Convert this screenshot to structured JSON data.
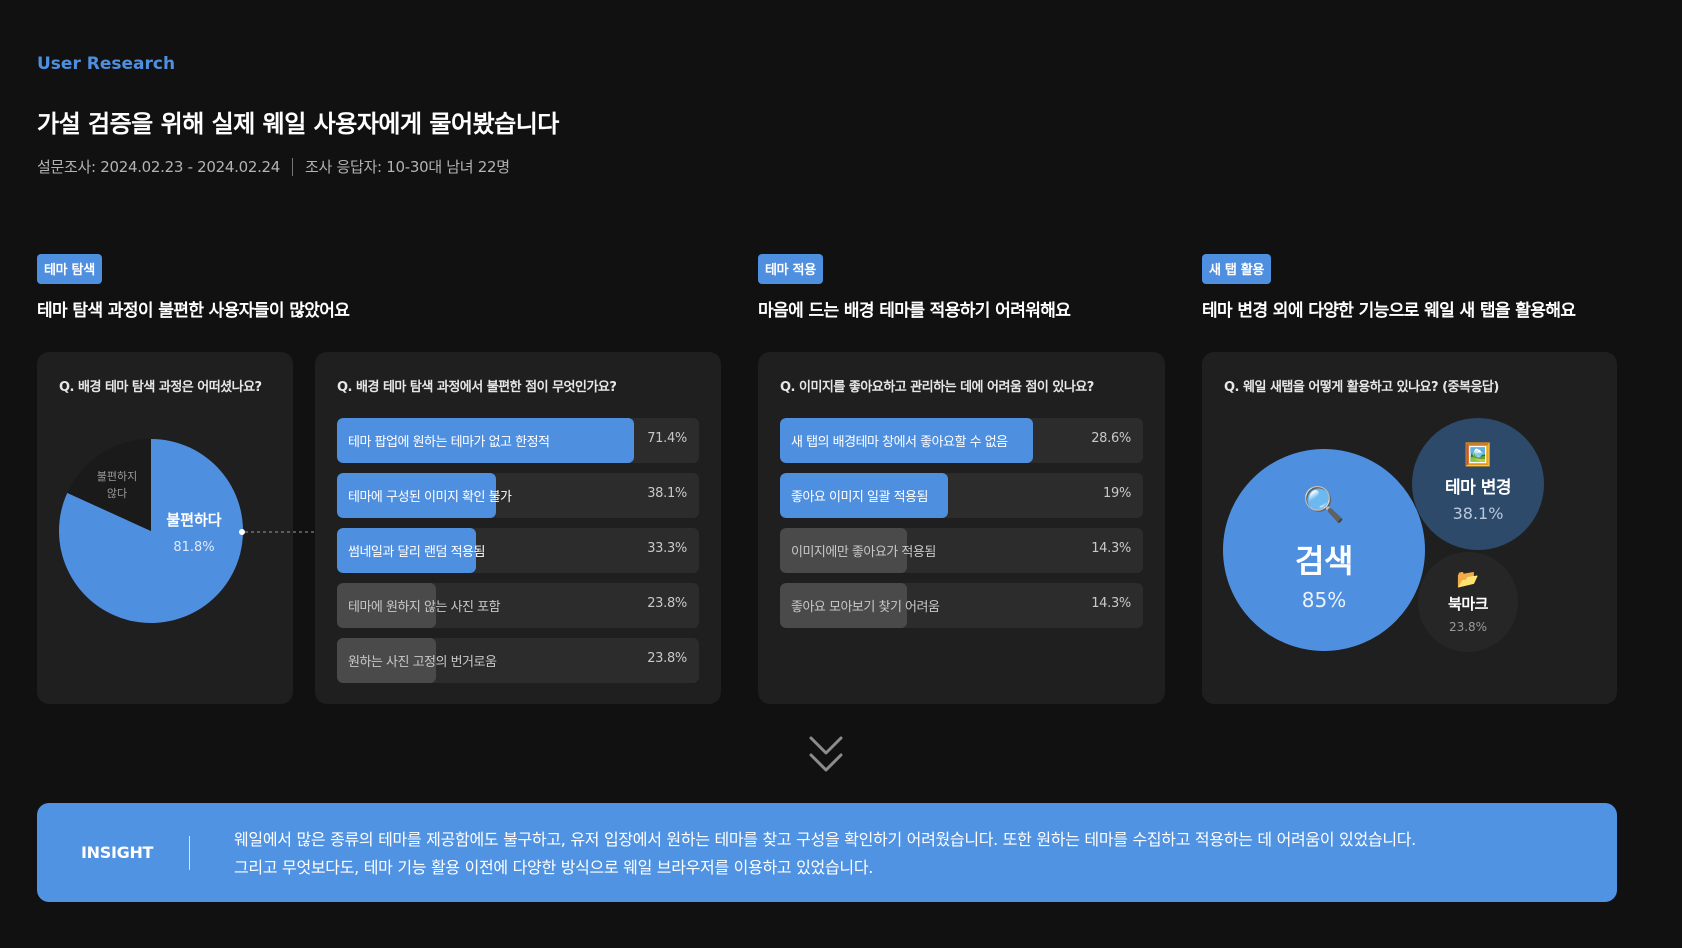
{
  "header": {
    "eyebrow": "User Research",
    "title": "가설 검증을 위해 실제 웨일 사용자에게 물어봤습니다",
    "survey_period": "설문조사: 2024.02.23 - 2024.02.24",
    "respondents": "조사 응답자: 10-30대 남녀 22명"
  },
  "sections": [
    {
      "tag": "테마 탐색",
      "title": "테마 탐색 과정이 불편한 사용자들이 많았어요"
    },
    {
      "tag": "테마 적용",
      "title": "마음에 드는 배경 테마를 적용하기 어려워해요"
    },
    {
      "tag": "새 탭 활용",
      "title": "테마 변경 외에 다양한 기능으로 웨일 새 탭을 활용해요"
    }
  ],
  "colors": {
    "accent": "#4f8fe0",
    "muted_bar": "#4a4a4a",
    "card": "#1f1f1f",
    "background": "#111111",
    "pie_secondary": "#1a1a1a",
    "bubble_theme": "#2d4a6b",
    "bubble_bookmark": "#262626"
  },
  "chart_data": [
    {
      "type": "pie",
      "question": "Q. 배경 테마 탐색 과정은 어떠셨나요?",
      "slices": [
        {
          "label": "불편하다",
          "value": 81.8,
          "display": "81.8%"
        },
        {
          "label": "불편하지 않다",
          "value": 18.2
        }
      ]
    },
    {
      "type": "bar",
      "question": "Q. 배경 테마 탐색 과정에서 불편한 점이 무엇인가요?",
      "categories": [
        "테마 팝업에 원하는 테마가 없고 한정적",
        "테마에 구성된 이미지 확인 불가",
        "썸네일과 달리 랜덤 적용됨",
        "테마에 원하지 않는 사진 포함",
        "원하는 사진 고정의 번거로움"
      ],
      "values": [
        71.4,
        38.1,
        33.3,
        23.8,
        23.8
      ],
      "labels": [
        "71.4%",
        "38.1%",
        "33.3%",
        "23.8%",
        "23.8%"
      ],
      "highlight": [
        true,
        true,
        true,
        false,
        false
      ]
    },
    {
      "type": "bar",
      "question": "Q. 이미지를 좋아요하고 관리하는 데에 어려움 점이 있나요?",
      "categories": [
        "새 탭의 배경테마 창에서 좋아요할 수 없음",
        "좋아요 이미지 일괄 적용됨",
        "이미지에만 좋아요가 적용됨",
        "좋아요 모아보기 찾기 어려움"
      ],
      "values": [
        28.6,
        19,
        14.3,
        14.3
      ],
      "labels": [
        "28.6%",
        "19%",
        "14.3%",
        "14.3%"
      ],
      "highlight": [
        true,
        true,
        false,
        false
      ]
    },
    {
      "type": "bubble",
      "question": "Q. 웨일 새탭을 어떻게 활용하고 있나요? (중복응답)",
      "items": [
        {
          "label": "검색",
          "value": 85,
          "display": "85%",
          "icon": "magnifier-icon",
          "glyph": "🔍"
        },
        {
          "label": "테마 변경",
          "value": 38.1,
          "display": "38.1%",
          "icon": "picture-icon",
          "glyph": "🖼️"
        },
        {
          "label": "북마크",
          "value": 23.8,
          "display": "23.8%",
          "icon": "folder-icon",
          "glyph": "📂"
        }
      ]
    }
  ],
  "insight": {
    "label": "INSIGHT",
    "line1": "웨일에서 많은 종류의 테마를 제공함에도 불구하고, 유저 입장에서 원하는 테마를 찾고 구성을 확인하기 어려웠습니다. 또한 원하는 테마를 수집하고 적용하는 데 어려움이 있었습니다.",
    "line2": "그리고 무엇보다도, 테마 기능 활용 이전에 다양한 방식으로 웨일 브라우저를 이용하고 있었습니다."
  }
}
